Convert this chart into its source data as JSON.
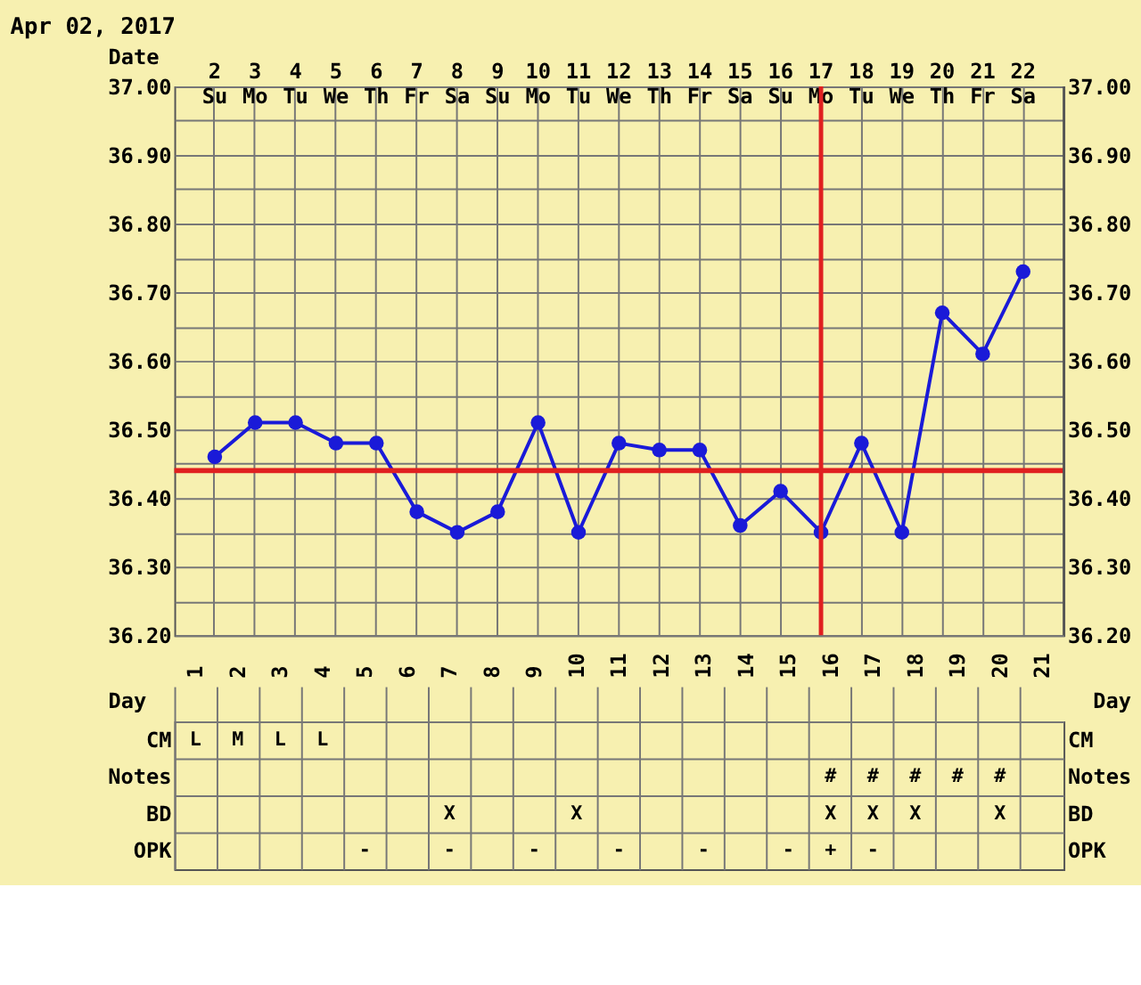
{
  "chart_data": [
    {
      "type": "line",
      "title": "Apr 02, 2017",
      "xlabel": "Date",
      "categories": [
        "2 Su",
        "3 Mo",
        "4 Tu",
        "5 We",
        "6 Th",
        "7 Fr",
        "8 Sa",
        "9 Su",
        "10 Mo",
        "11 Tu",
        "12 We",
        "13 Th",
        "14 Fr",
        "15 Sa",
        "16 Su",
        "17 Mo",
        "18 Tu",
        "19 We",
        "20 Th",
        "21 Fr",
        "22 Sa"
      ],
      "series": [
        {
          "color": "#1a1ad8",
          "values": [
            36.46,
            36.51,
            36.51,
            36.48,
            36.48,
            36.38,
            36.35,
            36.38,
            36.51,
            36.35,
            36.48,
            36.47,
            36.47,
            36.36,
            36.41,
            36.35,
            36.48,
            36.35,
            36.67,
            36.61,
            36.73
          ]
        }
      ],
      "ylim": [
        36.2,
        37.0
      ],
      "yticks": [
        {
          "value": 36.2,
          "label": "36.20"
        },
        {
          "value": 36.25,
          "label": null
        },
        {
          "value": 36.3,
          "label": "36.30"
        },
        {
          "value": 36.35,
          "label": null
        },
        {
          "value": 36.4,
          "label": "36.40"
        },
        {
          "value": 36.45,
          "label": null
        },
        {
          "value": 36.5,
          "label": "36.50"
        },
        {
          "value": 36.55,
          "label": null
        },
        {
          "value": 36.6,
          "label": "36.60"
        },
        {
          "value": 36.65,
          "label": null
        },
        {
          "value": 36.7,
          "label": "36.70"
        },
        {
          "value": 36.75,
          "label": null
        },
        {
          "value": 36.8,
          "label": "36.80"
        },
        {
          "value": 36.85,
          "label": null
        },
        {
          "value": 36.9,
          "label": "36.90"
        },
        {
          "value": 36.95,
          "label": null
        },
        {
          "value": 37.0,
          "label": "37.00"
        }
      ],
      "y2lim": [
        36.2,
        37.0
      ],
      "y2ticks": [
        {
          "value": 36.2,
          "label": "36.20"
        },
        {
          "value": 36.3,
          "label": "36.30"
        },
        {
          "value": 36.4,
          "label": "36.40"
        },
        {
          "value": 36.5,
          "label": "36.50"
        },
        {
          "value": 36.6,
          "label": "36.60"
        },
        {
          "value": 36.7,
          "label": "36.70"
        },
        {
          "value": 36.8,
          "label": "36.80"
        },
        {
          "value": 36.9,
          "label": "36.90"
        },
        {
          "value": 37.0,
          "label": "37.00"
        }
      ],
      "ref_lines": [
        {
          "axis": "y",
          "value": 36.44,
          "color": "#e02020"
        },
        {
          "axis": "x",
          "value": "17 Mo",
          "color": "#e02020"
        }
      ],
      "grid": true,
      "marker": "circle"
    },
    {
      "type": "heatmap",
      "xlabel": "Day",
      "x2label": "Day",
      "categories": [
        "1",
        "2",
        "3",
        "4",
        "5",
        "6",
        "7",
        "8",
        "9",
        "10",
        "11",
        "12",
        "13",
        "14",
        "15",
        "16",
        "17",
        "18",
        "19",
        "20",
        "21"
      ],
      "y_categories": [
        "CM",
        "Notes",
        "BD",
        "OPK"
      ],
      "y2_categories": [
        "CM",
        "Notes",
        "BD",
        "OPK"
      ],
      "cells": [
        [
          null,
          null,
          null,
          null,
          null,
          null,
          null,
          null,
          null,
          null,
          null,
          null,
          null,
          null,
          null,
          null,
          null,
          null,
          null,
          null,
          null
        ],
        [
          null,
          null,
          null,
          null,
          null,
          null,
          null,
          null,
          null,
          null,
          null,
          null,
          null,
          null,
          null,
          null,
          null,
          null,
          null,
          null,
          null
        ],
        [
          null,
          null,
          null,
          null,
          null,
          null,
          null,
          null,
          null,
          null,
          null,
          null,
          null,
          null,
          null,
          null,
          null,
          null,
          null,
          null,
          null
        ],
        [
          null,
          null,
          null,
          null,
          null,
          null,
          null,
          null,
          null,
          null,
          null,
          null,
          null,
          null,
          null,
          null,
          null,
          null,
          null,
          null,
          null
        ]
      ],
      "cell_labels": [
        [
          "L",
          "M",
          "L",
          "L",
          null,
          null,
          null,
          null,
          null,
          null,
          null,
          null,
          null,
          null,
          null,
          null,
          null,
          null,
          null,
          null,
          null
        ],
        [
          null,
          null,
          null,
          null,
          null,
          null,
          null,
          null,
          null,
          null,
          null,
          null,
          null,
          null,
          null,
          "#",
          "#",
          "#",
          "#",
          "#",
          null
        ],
        [
          null,
          null,
          null,
          null,
          null,
          null,
          "X",
          null,
          null,
          "X",
          null,
          null,
          null,
          null,
          null,
          "X",
          "X",
          "X",
          null,
          "X",
          null
        ],
        [
          null,
          null,
          null,
          null,
          "-",
          null,
          "-",
          null,
          "-",
          null,
          "-",
          null,
          "-",
          null,
          "-",
          "+",
          "-",
          null,
          null,
          null,
          null
        ]
      ]
    }
  ]
}
